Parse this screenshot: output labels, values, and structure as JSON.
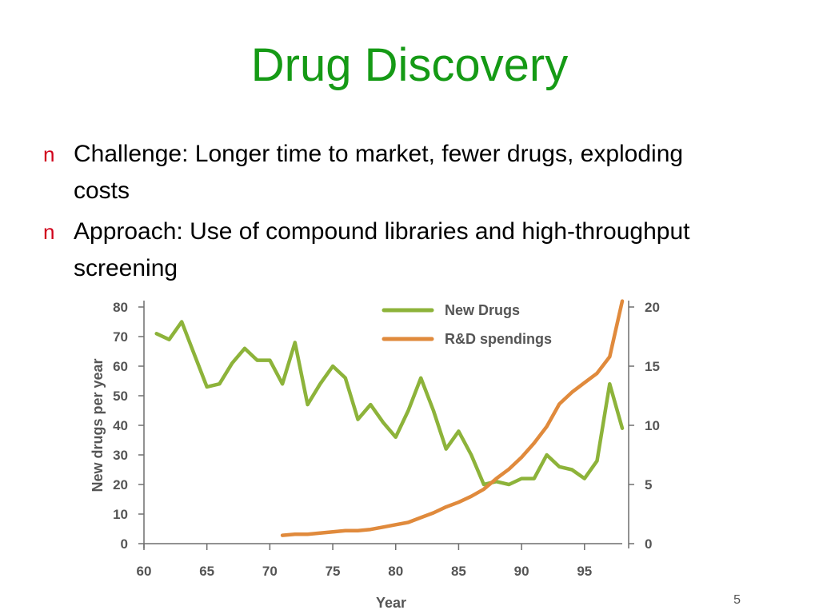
{
  "slide": {
    "title": "Drug Discovery",
    "bullet_marker": "n",
    "bullets": [
      "Challenge: Longer time to market, fewer drugs, exploding costs",
      "Approach: Use of compound libraries and high-throughput screening"
    ],
    "page_number": "5"
  },
  "colors": {
    "title": "#159a15",
    "bullet_marker": "#d0021b",
    "new_drugs": "#8db33a",
    "rd_spending": "#e08a3c",
    "axis": "#6f6f6f",
    "text": "#555555"
  },
  "chart_data": {
    "type": "line",
    "title": "",
    "xlabel": "Year",
    "ylabel": "New drugs per year",
    "xlim": [
      60,
      98
    ],
    "x_ticks": [
      60,
      65,
      70,
      75,
      80,
      85,
      90,
      95
    ],
    "ylim": [
      0,
      80
    ],
    "y_ticks": [
      0,
      10,
      20,
      30,
      40,
      50,
      60,
      70,
      80
    ],
    "y2lim": [
      0,
      20
    ],
    "y2_ticks": [
      0,
      5,
      10,
      15,
      20
    ],
    "grid": false,
    "legend_position": "top-right",
    "series": [
      {
        "name": "New Drugs",
        "axis": "left",
        "color": "#8db33a",
        "x": [
          61,
          62,
          63,
          64,
          65,
          66,
          67,
          68,
          69,
          70,
          71,
          72,
          73,
          74,
          75,
          76,
          77,
          78,
          79,
          80,
          81,
          82,
          83,
          84,
          85,
          86,
          87,
          88,
          89,
          90,
          91,
          92,
          93,
          94,
          95,
          96,
          97,
          98
        ],
        "values": [
          71,
          69,
          75,
          64,
          53,
          54,
          61,
          66,
          62,
          62,
          54,
          68,
          47,
          54,
          60,
          56,
          42,
          47,
          41,
          36,
          45,
          56,
          45,
          32,
          38,
          30,
          20,
          21,
          20,
          22,
          22,
          30,
          26,
          25,
          22,
          28,
          54,
          39
        ]
      },
      {
        "name": "R&D spendings",
        "axis": "right",
        "color": "#e08a3c",
        "x": [
          71,
          72,
          73,
          74,
          75,
          76,
          77,
          78,
          79,
          80,
          81,
          82,
          83,
          84,
          85,
          86,
          87,
          88,
          89,
          90,
          91,
          92,
          93,
          94,
          95,
          96,
          97,
          98
        ],
        "values": [
          0.7,
          0.8,
          0.8,
          0.9,
          1.0,
          1.1,
          1.1,
          1.2,
          1.4,
          1.6,
          1.8,
          2.2,
          2.6,
          3.1,
          3.5,
          4.0,
          4.6,
          5.5,
          6.3,
          7.3,
          8.5,
          9.9,
          11.8,
          12.8,
          13.6,
          14.4,
          15.8,
          20.5
        ]
      }
    ]
  }
}
